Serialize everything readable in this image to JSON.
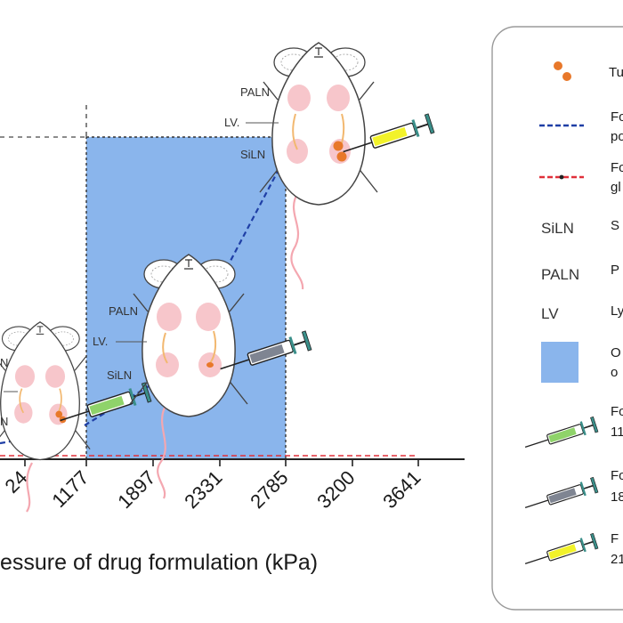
{
  "chart": {
    "axis_title": "essure of drug formulation (kPa)",
    "ticks": [
      "24",
      "1177",
      "1897",
      "2331",
      "2785",
      "3200",
      "3641"
    ],
    "optimal_range_color": "#8ab5ec",
    "fluorescence_line_color": "#1f3fa6",
    "control_line_color": "#e0303a"
  },
  "mice": {
    "left": {
      "labels": [
        "N",
        "N"
      ]
    },
    "middle": {
      "labels": [
        "PALN",
        "LV.",
        "SiLN"
      ]
    },
    "right": {
      "labels": [
        "PALN",
        "LV.",
        "SiLN"
      ]
    }
  },
  "legend": {
    "items": [
      {
        "id": "tumor",
        "icon": "orange-dots-icon",
        "lines": [
          "Tu"
        ]
      },
      {
        "id": "blue-line",
        "icon": "blue-dashed-line-icon",
        "lines": [
          "Fo",
          "po"
        ]
      },
      {
        "id": "red-line",
        "icon": "red-dashed-line-icon",
        "lines": [
          "Fo",
          "gl"
        ]
      },
      {
        "id": "siln",
        "abbr": "SiLN",
        "lines": [
          "S"
        ]
      },
      {
        "id": "paln",
        "abbr": "PALN",
        "lines": [
          "P"
        ]
      },
      {
        "id": "lv",
        "abbr": "LV",
        "lines": [
          "Ly"
        ]
      },
      {
        "id": "optimal",
        "icon": "blue-square-icon",
        "lines": [
          "O",
          "o"
        ]
      },
      {
        "id": "syringe-green",
        "icon": "green-syringe-icon",
        "lines": [
          "Fo",
          "11"
        ]
      },
      {
        "id": "syringe-gray",
        "icon": "gray-syringe-icon",
        "lines": [
          "Fo",
          "18"
        ]
      },
      {
        "id": "syringe-yellow",
        "icon": "yellow-syringe-icon",
        "lines": [
          "F",
          "21"
        ]
      }
    ]
  },
  "colors": {
    "green_syringe": "#8fd36a",
    "gray_syringe": "#7f8592",
    "yellow_syringe": "#f2f22a",
    "tumor": "#e8782a",
    "node": "#f7c6cb",
    "vessel": "#f2b870"
  }
}
